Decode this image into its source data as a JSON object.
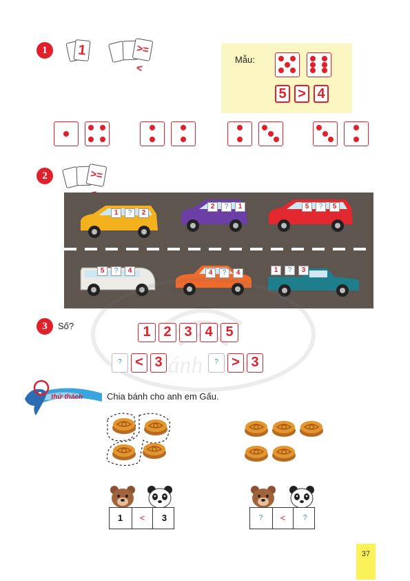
{
  "ex1": {
    "number": "1",
    "icon_card": "1",
    "icon_signs": ">=<",
    "sample": {
      "label": "Mẫu:",
      "left_value": "5",
      "sign": ">",
      "right_value": "4"
    },
    "pairs": [
      [
        1,
        4
      ],
      [
        2,
        2
      ],
      [
        2,
        3
      ],
      [
        3,
        2
      ]
    ]
  },
  "ex2": {
    "number": "2",
    "icon_signs": ">=<",
    "vehicles": [
      {
        "color": "#f3b21d",
        "plates": [
          "1",
          "?",
          "2"
        ]
      },
      {
        "color": "#6b3fa5",
        "plates": [
          "2",
          "?",
          "1"
        ]
      },
      {
        "color": "#e2282e",
        "plates": [
          "5",
          "?",
          "5"
        ]
      },
      {
        "color": "#ecebe6",
        "plates": [
          "5",
          "?",
          "4"
        ]
      },
      {
        "color": "#f06a2a",
        "plates": [
          "4",
          "?",
          "4"
        ]
      },
      {
        "color": "#1f7e8c",
        "plates": [
          "1",
          "?",
          "3"
        ]
      }
    ]
  },
  "ex3": {
    "number": "3",
    "label": "Số?",
    "sequence": [
      "1",
      "2",
      "3",
      "4",
      "5"
    ],
    "compare1": {
      "left": "?",
      "sign": "<",
      "right": "3"
    },
    "compare2": {
      "left": "?",
      "sign": ">",
      "right": "3"
    }
  },
  "challenge": {
    "badge": "thử thách",
    "text": "Chia bánh cho anh em Gấu.",
    "left_answer": {
      "left": "1",
      "sign": "<",
      "right": "3"
    },
    "right_answer": {
      "left": "?",
      "sign": "<",
      "right": "?"
    }
  },
  "page_number": "37",
  "watermark": "Cánh Diều"
}
